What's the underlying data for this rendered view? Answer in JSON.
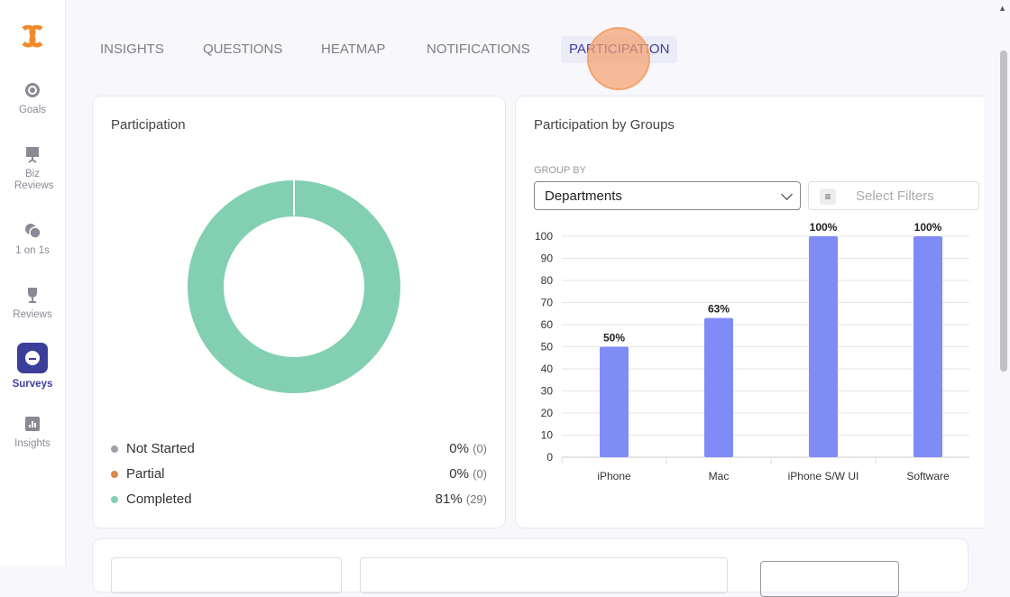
{
  "sidebar": {
    "items": [
      {
        "label": "Goals"
      },
      {
        "label": "Biz Reviews"
      },
      {
        "label": "1 on 1s"
      },
      {
        "label": "Reviews"
      },
      {
        "label": "Surveys"
      },
      {
        "label": "Insights"
      }
    ]
  },
  "tabs": [
    "INSIGHTS",
    "QUESTIONS",
    "HEATMAP",
    "NOTIFICATIONS",
    "PARTICIPATION"
  ],
  "participation": {
    "title": "Participation",
    "legend": [
      {
        "label": "Not Started",
        "pct": "0%",
        "count": "(0)",
        "color": "#a0a0ab"
      },
      {
        "label": "Partial",
        "pct": "0%",
        "count": "(0)",
        "color": "#d88a4a"
      },
      {
        "label": "Completed",
        "pct": "81%",
        "count": "(29)",
        "color": "#82d0b1"
      }
    ]
  },
  "groups": {
    "title": "Participation by Groups",
    "group_by_label": "GROUP BY",
    "group_by_value": "Departments",
    "filter_placeholder": "Select Filters"
  },
  "chart_data": {
    "type": "bar",
    "categories": [
      "iPhone",
      "Mac",
      "iPhone S/W UI",
      "Software"
    ],
    "values": [
      50,
      63,
      100,
      100
    ],
    "data_labels": [
      "50%",
      "63%",
      "100%",
      "100%"
    ],
    "ylim": [
      0,
      100
    ],
    "yticks": [
      0,
      10,
      20,
      30,
      40,
      50,
      60,
      70,
      80,
      90,
      100
    ],
    "color": "#7f8cf5",
    "grid": true
  }
}
